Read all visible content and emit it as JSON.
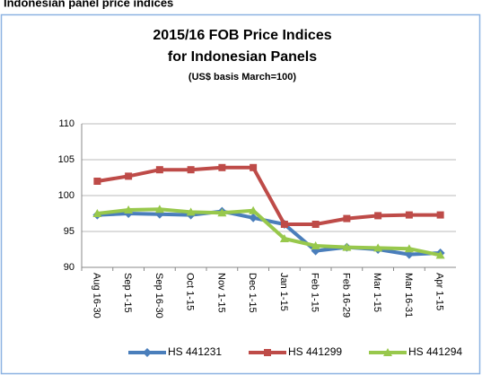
{
  "heading": "Indonesian panel price indices",
  "chart_data": {
    "type": "line",
    "title": [
      "2015/16 FOB Price Indices",
      "for Indonesian Panels"
    ],
    "subtitle": "(US$ basis March=100)",
    "categories": [
      "Aug 16-30",
      "Sep 1-15",
      "Sep 16-30",
      "Oct 1-15",
      "Nov 1-15",
      "Dec 1-15",
      "Jan 1-15",
      "Feb 1-15",
      "Feb 16-29",
      "Mar 1-15",
      "Mar 16-31",
      "Apr 1-15"
    ],
    "series": [
      {
        "name": "HS 441231",
        "color": "#4a7ebb",
        "marker": "diamond",
        "values": [
          97.3,
          97.5,
          97.4,
          97.3,
          97.8,
          96.9,
          96.0,
          92.3,
          92.8,
          92.5,
          91.8,
          92.0
        ]
      },
      {
        "name": "HS 441299",
        "color": "#be4b48",
        "marker": "square",
        "values": [
          102.0,
          102.7,
          103.6,
          103.6,
          103.9,
          103.9,
          96.0,
          96.0,
          96.8,
          97.2,
          97.3,
          97.3
        ]
      },
      {
        "name": "HS 441294",
        "color": "#98c84c",
        "marker": "triangle",
        "values": [
          97.5,
          98.0,
          98.1,
          97.7,
          97.6,
          97.9,
          94.0,
          93.0,
          92.8,
          92.7,
          92.6,
          91.7
        ]
      }
    ],
    "ylim": [
      90,
      110
    ],
    "yticks": [
      90,
      95,
      100,
      105,
      110
    ],
    "grid": true,
    "legend": "bottom"
  }
}
